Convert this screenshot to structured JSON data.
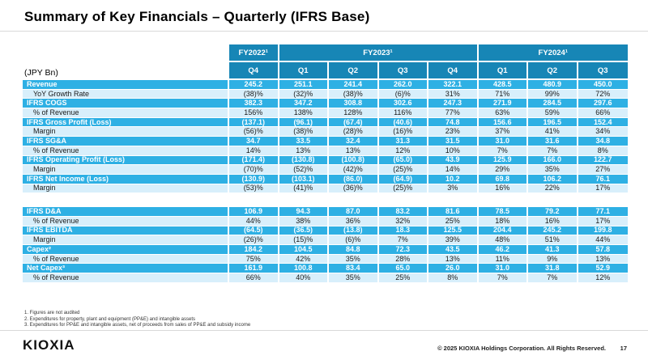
{
  "title": "Summary of Key Financials – Quarterly (IFRS Base)",
  "table": {
    "unit_label": "(JPY Bn)",
    "year_groups": [
      {
        "label": "FY2022¹",
        "span": 1
      },
      {
        "label": "FY2023¹",
        "span": 4
      },
      {
        "label": "FY2024¹",
        "span": 3
      }
    ],
    "quarter_headers": [
      "Q4",
      "Q1",
      "Q2",
      "Q3",
      "Q4",
      "Q1",
      "Q2",
      "Q3"
    ],
    "blocks": [
      {
        "rows": [
          {
            "label": "Revenue",
            "type": "metric",
            "values": [
              "245.2",
              "251.1",
              "241.4",
              "262.0",
              "322.1",
              "428.5",
              "480.9",
              "450.0"
            ]
          },
          {
            "label": "YoY Growth Rate",
            "type": "sub",
            "values": [
              "(38)%",
              "(32)%",
              "(38)%",
              "(6)%",
              "31%",
              "71%",
              "99%",
              "72%"
            ]
          },
          {
            "label": "IFRS COGS",
            "type": "metric",
            "values": [
              "382.3",
              "347.2",
              "308.8",
              "302.6",
              "247.3",
              "271.9",
              "284.5",
              "297.6"
            ]
          },
          {
            "label": "% of Revenue",
            "type": "sub",
            "values": [
              "156%",
              "138%",
              "128%",
              "116%",
              "77%",
              "63%",
              "59%",
              "66%"
            ]
          },
          {
            "label": "IFRS Gross Profit (Loss)",
            "type": "metric",
            "values": [
              "(137.1)",
              "(96.1)",
              "(67.4)",
              "(40.6)",
              "74.8",
              "156.6",
              "196.5",
              "152.4"
            ]
          },
          {
            "label": "Margin",
            "type": "sub",
            "values": [
              "(56)%",
              "(38)%",
              "(28)%",
              "(16)%",
              "23%",
              "37%",
              "41%",
              "34%"
            ]
          },
          {
            "label": "IFRS SG&A",
            "type": "metric",
            "values": [
              "34.7",
              "33.5",
              "32.4",
              "31.3",
              "31.5",
              "31.0",
              "31.6",
              "34.8"
            ]
          },
          {
            "label": "% of Revenue",
            "type": "sub",
            "values": [
              "14%",
              "13%",
              "13%",
              "12%",
              "10%",
              "7%",
              "7%",
              "8%"
            ]
          },
          {
            "label": "IFRS Operating Profit (Loss)",
            "type": "metric",
            "values": [
              "(171.4)",
              "(130.8)",
              "(100.8)",
              "(65.0)",
              "43.9",
              "125.9",
              "166.0",
              "122.7"
            ]
          },
          {
            "label": "Margin",
            "type": "sub",
            "values": [
              "(70)%",
              "(52)%",
              "(42)%",
              "(25)%",
              "14%",
              "29%",
              "35%",
              "27%"
            ]
          },
          {
            "label": "IFRS Net Income (Loss)",
            "type": "metric",
            "values": [
              "(130.9)",
              "(103.1)",
              "(86.0)",
              "(64.9)",
              "10.2",
              "69.8",
              "106.2",
              "76.1"
            ]
          },
          {
            "label": "Margin",
            "type": "sub",
            "values": [
              "(53)%",
              "(41)%",
              "(36)%",
              "(25)%",
              "3%",
              "16%",
              "22%",
              "17%"
            ]
          }
        ]
      },
      {
        "rows": [
          {
            "label": "IFRS D&A",
            "type": "metric",
            "values": [
              "106.9",
              "94.3",
              "87.0",
              "83.2",
              "81.6",
              "78.5",
              "79.2",
              "77.1"
            ]
          },
          {
            "label": "% of Revenue",
            "type": "sub",
            "values": [
              "44%",
              "38%",
              "36%",
              "32%",
              "25%",
              "18%",
              "16%",
              "17%"
            ]
          },
          {
            "label": "IFRS EBITDA",
            "type": "metric",
            "values": [
              "(64.5)",
              "(36.5)",
              "(13.8)",
              "18.3",
              "125.5",
              "204.4",
              "245.2",
              "199.8"
            ]
          },
          {
            "label": "Margin",
            "type": "sub",
            "values": [
              "(26)%",
              "(15)%",
              "(6)%",
              "7%",
              "39%",
              "48%",
              "51%",
              "44%"
            ]
          },
          {
            "label": "Capex²",
            "type": "metric",
            "values": [
              "184.2",
              "104.5",
              "84.8",
              "72.3",
              "43.5",
              "46.2",
              "41.3",
              "57.8"
            ]
          },
          {
            "label": "% of Revenue",
            "type": "sub",
            "values": [
              "75%",
              "42%",
              "35%",
              "28%",
              "13%",
              "11%",
              "9%",
              "13%"
            ]
          },
          {
            "label": "Net Capex³",
            "type": "metric",
            "values": [
              "161.9",
              "100.8",
              "83.4",
              "65.0",
              "26.0",
              "31.0",
              "31.8",
              "52.9"
            ]
          },
          {
            "label": "% of Revenue",
            "type": "sub",
            "values": [
              "66%",
              "40%",
              "35%",
              "25%",
              "8%",
              "7%",
              "7%",
              "12%"
            ]
          }
        ]
      }
    ]
  },
  "footnotes": [
    "1. Figures are not audited",
    "2. Expenditures for property, plant and equipment (PP&E) and intangible assets",
    "3. Expenditures for PP&E and intangible assets, net of proceeds from sales of PP&E and subsidy income"
  ],
  "footer": {
    "logo": "KIOXIA",
    "copyright": "© 2025 KIOXIA Holdings Corporation. All Rights Reserved.",
    "page_number": "17"
  },
  "colors": {
    "header_teal": "#1786b6",
    "metric_cyan": "#2eb0e4",
    "sub_light_blue": "#d8effb"
  }
}
